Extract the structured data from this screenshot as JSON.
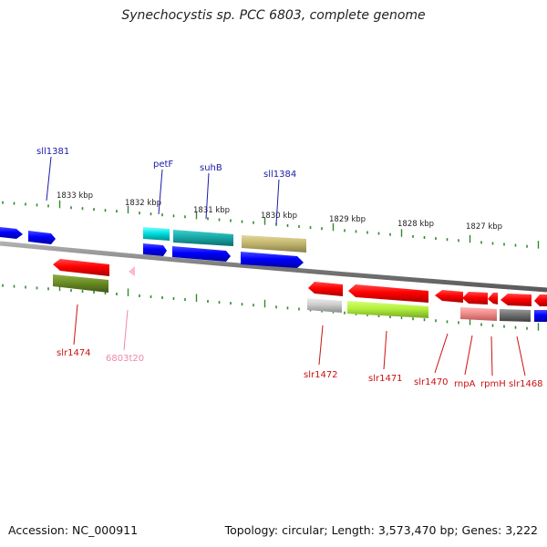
{
  "title": "Synechocystis sp. PCC 6803, complete genome",
  "footer": {
    "accession": "Accession: NC_000911",
    "summary": "Topology: circular; Length: 3,573,470 bp; Genes: 3,222"
  },
  "scale_labels": [
    "1833 kbp",
    "1832 kbp",
    "1831 kbp",
    "1830 kbp",
    "1829 kbp",
    "1828 kbp",
    "1827 kbp"
  ],
  "gene_labels": {
    "top": [
      "sll1381",
      "petF",
      "suhB",
      "sll1384"
    ],
    "bottom": [
      "slr1474",
      "6803t20",
      "slr1472",
      "slr1471",
      "slr1470",
      "rnpA",
      "rpmH",
      "slr1468"
    ]
  },
  "colors": {
    "forward_cds": "#ee0000",
    "reverse_cds": "#0000ee",
    "top_label": "#1a1aa8",
    "bottom_label": "#cc1111",
    "rna_label": "#ee88aa",
    "backbone": "#888888",
    "tick": "#2e8b2e"
  }
}
